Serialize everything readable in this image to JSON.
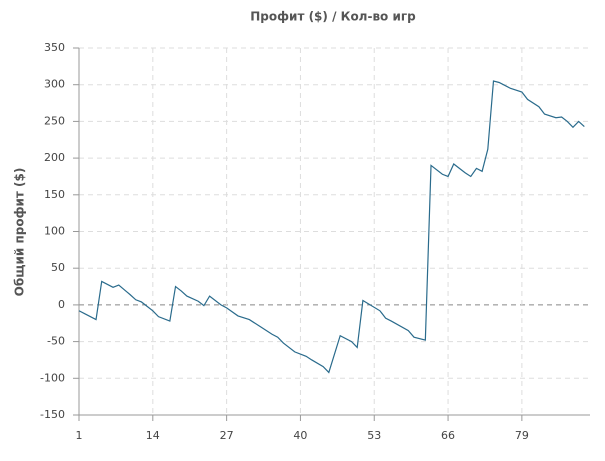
{
  "chart_data": {
    "type": "line",
    "title": "Профит ($) / Кол-во игр",
    "y_label": "Общий профит ($)",
    "x": [
      1,
      2,
      4,
      5,
      7,
      8,
      10,
      11,
      12,
      14,
      15,
      17,
      18,
      19,
      20,
      22,
      23,
      24,
      26,
      27,
      29,
      31,
      33,
      35,
      36,
      37,
      39,
      41,
      42,
      44,
      45,
      47,
      49,
      50,
      51,
      54,
      55,
      56,
      59,
      60,
      62,
      63,
      65,
      66,
      67,
      69,
      70,
      71,
      72,
      73,
      74,
      75,
      77,
      79,
      80,
      82,
      83,
      85,
      86,
      87,
      88,
      89,
      90
    ],
    "series": [
      {
        "color": "#2a6b8c",
        "values": [
          -8,
          -12,
          -20,
          32,
          24,
          27,
          14,
          7,
          4,
          -8,
          -16,
          -22,
          25,
          19,
          12,
          5,
          -1,
          12,
          0,
          -4,
          -15,
          -20,
          -30,
          -40,
          -44,
          -52,
          -64,
          -70,
          -75,
          -84,
          -92,
          -42,
          -50,
          -58,
          6,
          -8,
          -18,
          -22,
          -35,
          -44,
          -48,
          190,
          178,
          175,
          192,
          180,
          175,
          186,
          182,
          212,
          305,
          303,
          295,
          290,
          280,
          270,
          260,
          255,
          256,
          250,
          242,
          250,
          243
        ]
      }
    ],
    "xlim": [
      1,
      91
    ],
    "xticks": [
      1,
      14,
      27,
      40,
      53,
      66,
      79
    ],
    "ylim": [
      -150,
      350
    ],
    "yticks": [
      -150,
      -100,
      -50,
      0,
      50,
      100,
      150,
      200,
      250,
      300,
      350
    ],
    "grid": true
  }
}
